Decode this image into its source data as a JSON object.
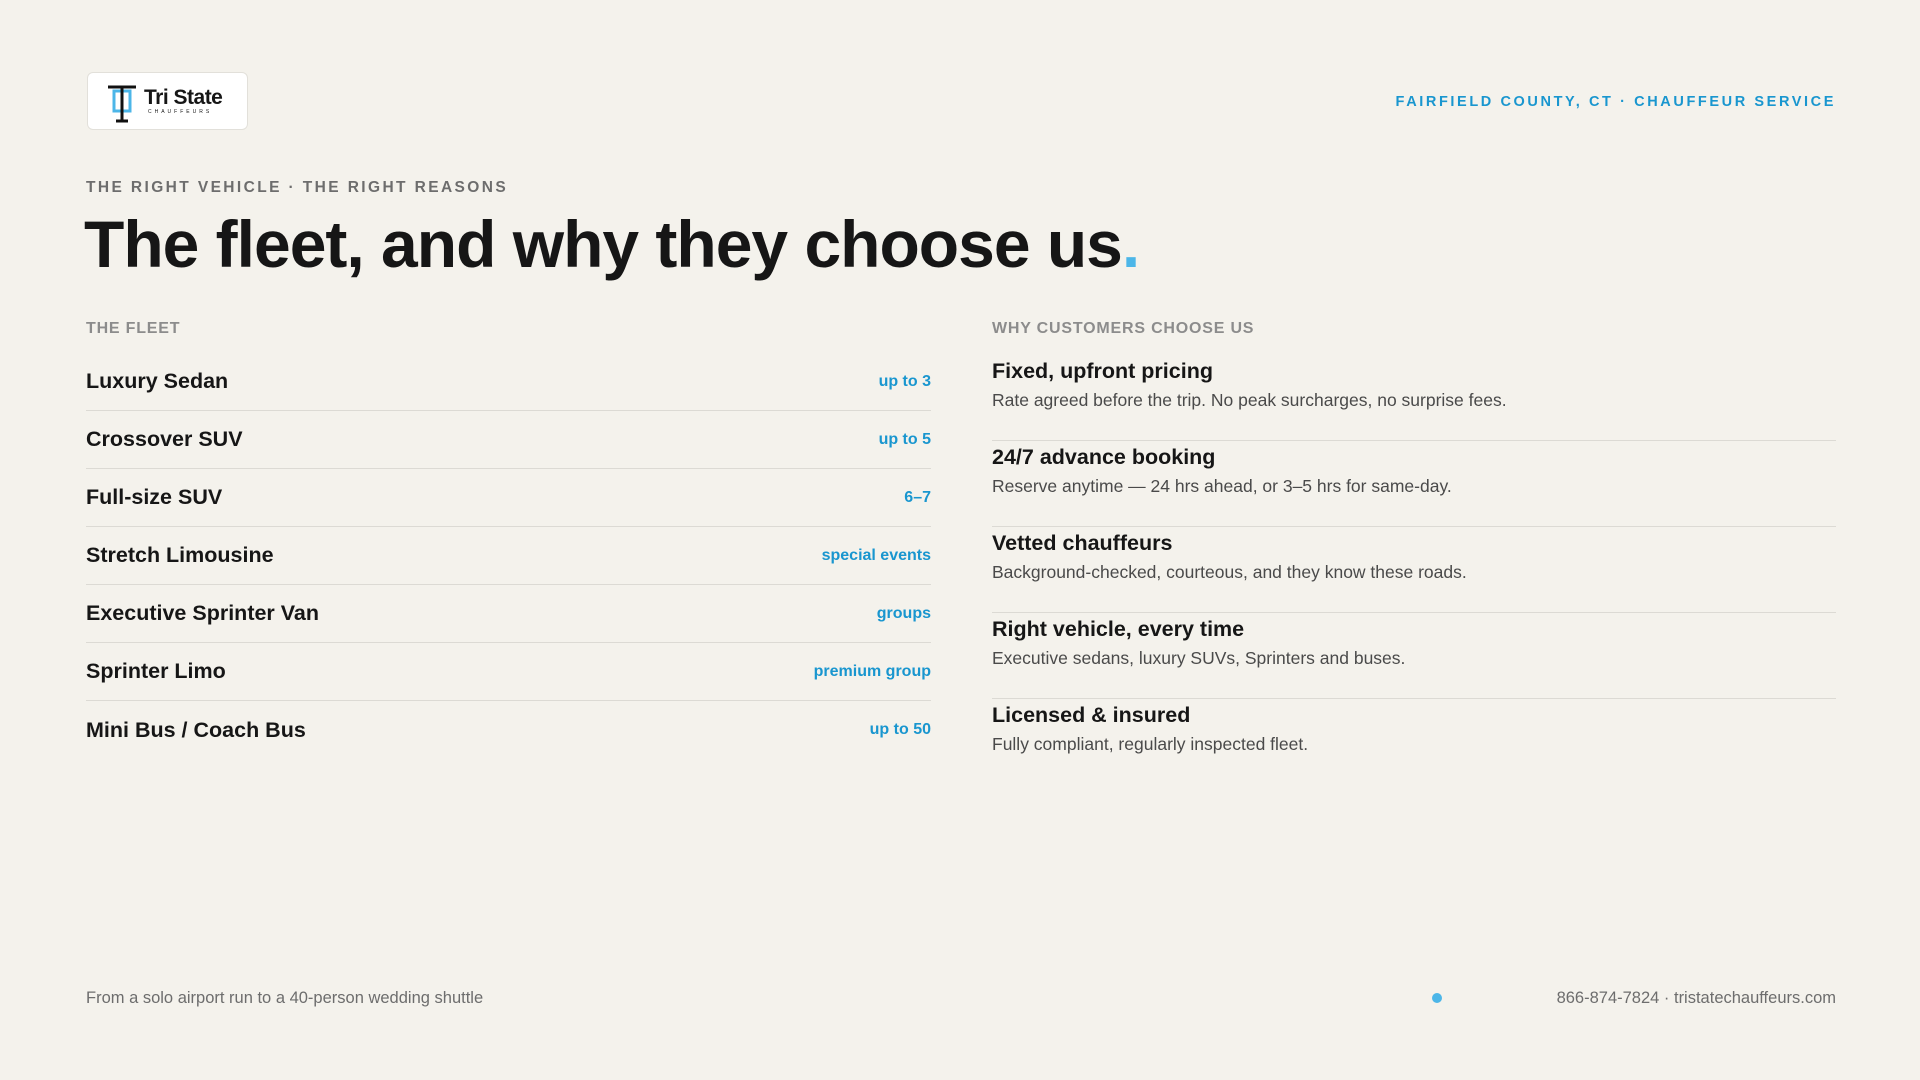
{
  "header": {
    "logo": {
      "name": "Tri State",
      "sub": "CHAUFFEURS"
    },
    "tagline": "FAIRFIELD COUNTY, CT · CHAUFFEUR SERVICE"
  },
  "eyebrow": "THE RIGHT VEHICLE · THE RIGHT REASONS",
  "title": {
    "text": "The fleet, and why they choose us",
    "accent": "."
  },
  "fleet": {
    "heading": "THE FLEET",
    "rows": [
      {
        "name": "Luxury Sedan",
        "capacity": "up to 3"
      },
      {
        "name": "Crossover SUV",
        "capacity": "up to 5"
      },
      {
        "name": "Full-size SUV",
        "capacity": "6–7"
      },
      {
        "name": "Stretch Limousine",
        "capacity": "special events"
      },
      {
        "name": "Executive Sprinter Van",
        "capacity": "groups"
      },
      {
        "name": "Sprinter Limo",
        "capacity": "premium group"
      },
      {
        "name": "Mini Bus / Coach Bus",
        "capacity": "up to 50"
      }
    ]
  },
  "reasons": {
    "heading": "WHY CUSTOMERS CHOOSE US",
    "items": [
      {
        "title": "Fixed, upfront pricing",
        "text": "Rate agreed before the trip. No peak surcharges, no surprise fees."
      },
      {
        "title": "24/7 advance booking",
        "text": "Reserve anytime — 24 hrs ahead, or 3–5 hrs for same-day."
      },
      {
        "title": "Vetted chauffeurs",
        "text": "Background-checked, courteous, and they know these roads."
      },
      {
        "title": "Right vehicle, every time",
        "text": "Executive sedans, luxury SUVs, Sprinters and buses."
      },
      {
        "title": "Licensed & insured",
        "text": "Fully compliant, regularly inspected fleet."
      }
    ]
  },
  "footer": {
    "left": "From a solo airport run to a 40-person wedding shuttle",
    "contact": "866-874-7824 · tristatechauffeurs.com"
  }
}
